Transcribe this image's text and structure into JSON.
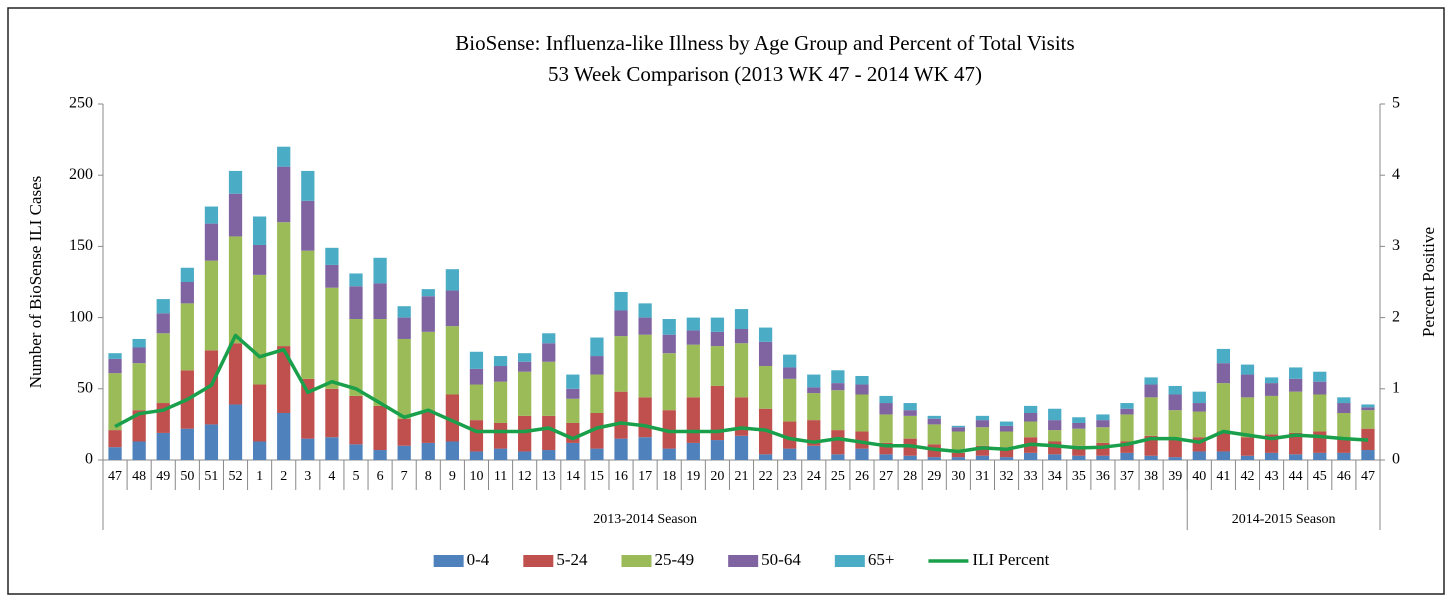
{
  "chart_data": {
    "type": "bar",
    "title": "BioSense: Influenza-like Illness by Age Group and Percent of Total Visits",
    "subtitle": "53 Week Comparison (2013 WK 47 - 2014 WK 47)",
    "ylabel": "Number of BioSense ILI Cases",
    "y2label": "Percent Positive",
    "categories": [
      "47",
      "48",
      "49",
      "50",
      "51",
      "52",
      "1",
      "2",
      "3",
      "4",
      "5",
      "6",
      "7",
      "8",
      "9",
      "10",
      "11",
      "12",
      "13",
      "14",
      "15",
      "16",
      "17",
      "18",
      "19",
      "20",
      "21",
      "22",
      "23",
      "24",
      "25",
      "26",
      "27",
      "28",
      "29",
      "30",
      "31",
      "32",
      "33",
      "34",
      "35",
      "36",
      "37",
      "38",
      "39",
      "40",
      "41",
      "42",
      "43",
      "44",
      "45",
      "46",
      "47"
    ],
    "groups": [
      {
        "label": "2013-2014 Season",
        "count": 45
      },
      {
        "label": "2014-2015 Season",
        "count": 8
      }
    ],
    "stacked": true,
    "series": [
      {
        "name": "0-4",
        "color": "#4f81bd",
        "values": [
          9,
          13,
          19,
          22,
          25,
          39,
          13,
          33,
          15,
          16,
          11,
          7,
          10,
          12,
          13,
          6,
          8,
          6,
          7,
          12,
          8,
          15,
          16,
          8,
          12,
          14,
          17,
          4,
          8,
          10,
          4,
          8,
          4,
          3,
          2,
          2,
          3,
          2,
          5,
          4,
          3,
          3,
          5,
          3,
          2,
          6,
          6,
          3,
          5,
          4,
          5,
          5,
          7
        ]
      },
      {
        "name": "5-24",
        "color": "#c0504d",
        "values": [
          12,
          22,
          21,
          41,
          52,
          43,
          40,
          47,
          42,
          34,
          34,
          31,
          19,
          23,
          33,
          22,
          18,
          25,
          24,
          14,
          25,
          33,
          28,
          27,
          32,
          38,
          27,
          32,
          19,
          18,
          17,
          12,
          8,
          12,
          9,
          3,
          7,
          7,
          11,
          9,
          7,
          9,
          8,
          14,
          13,
          10,
          14,
          13,
          13,
          15,
          15,
          10,
          15
        ]
      },
      {
        "name": "25-49",
        "color": "#9bbb59",
        "values": [
          40,
          33,
          49,
          47,
          63,
          75,
          77,
          87,
          90,
          71,
          54,
          61,
          56,
          55,
          48,
          25,
          29,
          31,
          38,
          17,
          27,
          39,
          44,
          40,
          37,
          28,
          38,
          30,
          30,
          19,
          28,
          26,
          20,
          16,
          14,
          15,
          13,
          11,
          11,
          8,
          12,
          11,
          19,
          27,
          20,
          18,
          34,
          28,
          27,
          29,
          26,
          18,
          13
        ]
      },
      {
        "name": "50-64",
        "color": "#8064a2",
        "values": [
          10,
          11,
          14,
          15,
          26,
          30,
          21,
          39,
          35,
          16,
          23,
          25,
          15,
          25,
          25,
          11,
          11,
          7,
          13,
          7,
          13,
          18,
          12,
          13,
          10,
          10,
          10,
          17,
          8,
          4,
          5,
          7,
          8,
          4,
          4,
          3,
          5,
          4,
          6,
          7,
          4,
          5,
          4,
          9,
          11,
          6,
          14,
          16,
          9,
          9,
          9,
          7,
          2
        ]
      },
      {
        "name": "65+",
        "color": "#4bacc6",
        "values": [
          4,
          6,
          10,
          10,
          12,
          16,
          20,
          14,
          21,
          12,
          9,
          18,
          8,
          5,
          15,
          12,
          7,
          6,
          7,
          10,
          13,
          13,
          10,
          11,
          9,
          10,
          14,
          10,
          9,
          9,
          9,
          6,
          5,
          5,
          2,
          1,
          3,
          3,
          5,
          8,
          4,
          4,
          4,
          5,
          6,
          8,
          10,
          7,
          4,
          8,
          7,
          4,
          2
        ]
      },
      {
        "name": "ILI Percent",
        "color": "#1a9f4a",
        "type": "line",
        "axis": "y2",
        "values": [
          0.47,
          0.65,
          0.7,
          0.85,
          1.05,
          1.75,
          1.45,
          1.55,
          0.95,
          1.1,
          1.0,
          0.8,
          0.6,
          0.7,
          0.55,
          0.4,
          0.4,
          0.4,
          0.45,
          0.3,
          0.45,
          0.52,
          0.48,
          0.4,
          0.4,
          0.4,
          0.45,
          0.42,
          0.3,
          0.25,
          0.3,
          0.25,
          0.2,
          0.2,
          0.15,
          0.12,
          0.17,
          0.15,
          0.22,
          0.2,
          0.17,
          0.18,
          0.22,
          0.3,
          0.3,
          0.25,
          0.4,
          0.35,
          0.3,
          0.35,
          0.33,
          0.3,
          0.28
        ]
      }
    ],
    "ylim": [
      0,
      250
    ],
    "yticks": [
      0,
      50,
      100,
      150,
      200,
      250
    ],
    "y2lim": [
      0,
      5
    ],
    "y2ticks": [
      0,
      1,
      2,
      3,
      4,
      5
    ],
    "grid": false,
    "legend": "bottom"
  }
}
